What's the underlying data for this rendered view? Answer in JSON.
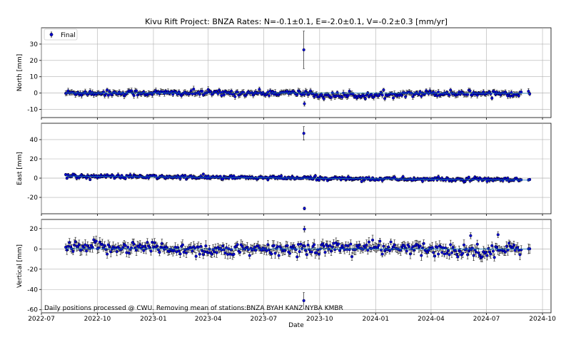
{
  "chart_data": {
    "type": "scatter",
    "title": "Kivu Rift Project: BNZA  Rates: N=-0.1±0.1, E=-2.0±0.1, V=-0.2±0.3 [mm/yr]",
    "xlabel": "Date",
    "x_ticks": [
      "2022-07",
      "2022-10",
      "2023-01",
      "2023-04",
      "2023-07",
      "2023-10",
      "2024-01",
      "2024-04",
      "2024-07",
      "2024-10"
    ],
    "xlim": [
      "2022-07-01",
      "2024-10-15"
    ],
    "data_range": [
      "2022-08-10",
      "2024-09-10"
    ],
    "legend": {
      "label": "Final",
      "placement": "top-left"
    },
    "annotation": "Daily positions processed @ CWU. Removing mean of stations:BNZA BYAH KANZ NYBA KMBR",
    "grid": true,
    "colors": {
      "marker": "#0000cc",
      "error_bar": "#000000",
      "fit_line": "#1f77b4",
      "zero_line": "#aaaaaa"
    },
    "panels": [
      {
        "name": "North",
        "ylabel": "North [mm]",
        "ylim": [
          -15,
          40
        ],
        "yticks": [
          30,
          20,
          10,
          0,
          -10
        ],
        "rate_mm_per_yr": -0.1,
        "scatter_mm": 0.9,
        "error_mm": 1.4,
        "outliers": [
          {
            "date": "2023-09-05",
            "value": 26.5,
            "error": 11.5
          },
          {
            "date": "2023-09-06",
            "value": -6.5,
            "error": 1.5
          }
        ]
      },
      {
        "name": "East",
        "ylabel": "East [mm]",
        "ylim": [
          -37,
          57
        ],
        "yticks": [
          40,
          20,
          0,
          -20
        ],
        "rate_mm_per_yr": -2.0,
        "scatter_mm": 1.0,
        "error_mm": 1.6,
        "outliers": [
          {
            "date": "2023-09-05",
            "value": 46.5,
            "error": 7.0
          },
          {
            "date": "2023-09-06",
            "value": -31.5,
            "error": 1.5
          }
        ]
      },
      {
        "name": "Vertical",
        "ylabel": "Vertical [mm]",
        "ylim": [
          -63,
          29
        ],
        "yticks": [
          20,
          0,
          -20,
          -40,
          -60
        ],
        "rate_mm_per_yr": -0.2,
        "scatter_mm": 3.2,
        "error_mm": 4.0,
        "outliers": [
          {
            "date": "2023-09-06",
            "value": 19.5,
            "error": 3.0
          },
          {
            "date": "2023-09-05",
            "value": -51.0,
            "error": 8.0
          },
          {
            "date": "2024-07-20",
            "value": 14.0,
            "error": 3.0
          },
          {
            "date": "2024-06-05",
            "value": 13.0,
            "error": 3.0
          }
        ]
      }
    ]
  }
}
